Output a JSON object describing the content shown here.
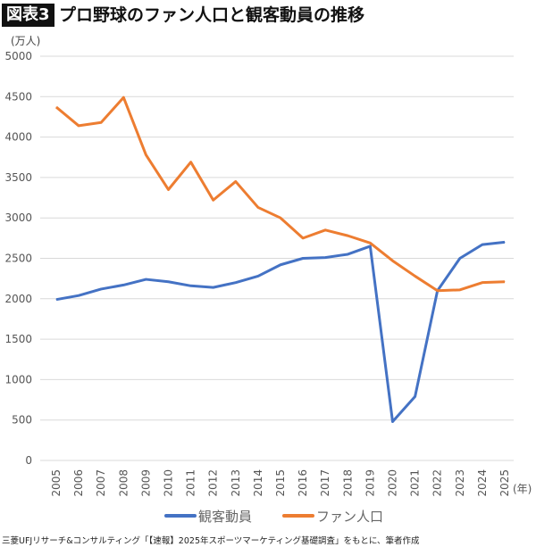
{
  "header": {
    "badge": "図表3",
    "title": "プロ野球のファン人口と観客動員の推移"
  },
  "source": "三菱UFJリサーチ&コンサルティング「【速報】2025年スポーツマーケティング基礎調査」をもとに、筆者作成",
  "chart_data": {
    "type": "line",
    "title": "プロ野球のファン人口と観客動員の推移",
    "ylabel": "(万人)",
    "xlabel": "(年)",
    "ylim": [
      0,
      5000
    ],
    "yticks": [
      0,
      500,
      1000,
      1500,
      2000,
      2500,
      3000,
      3500,
      4000,
      4500,
      5000
    ],
    "grid": true,
    "legend": "bottom",
    "x": [
      "2005",
      "2006",
      "2007",
      "2008",
      "2009",
      "2010",
      "2011",
      "2012",
      "2013",
      "2014",
      "2015",
      "2016",
      "2017",
      "2018",
      "2019",
      "2020",
      "2021",
      "2022",
      "2023",
      "2024",
      "2025"
    ],
    "series": [
      {
        "name": "観客動員",
        "color": "#4472c4",
        "values": [
          1990,
          2040,
          2120,
          2170,
          2240,
          2210,
          2160,
          2140,
          2200,
          2280,
          2420,
          2500,
          2510,
          2550,
          2650,
          480,
          790,
          2100,
          2500,
          2670,
          2700
        ]
      },
      {
        "name": "ファン人口",
        "color": "#ed7d31",
        "values": [
          4370,
          4140,
          4180,
          4490,
          3780,
          3350,
          3690,
          3220,
          3450,
          3130,
          3000,
          2750,
          2850,
          2780,
          2690,
          2470,
          2280,
          2100,
          2110,
          2200,
          2210
        ]
      }
    ]
  }
}
